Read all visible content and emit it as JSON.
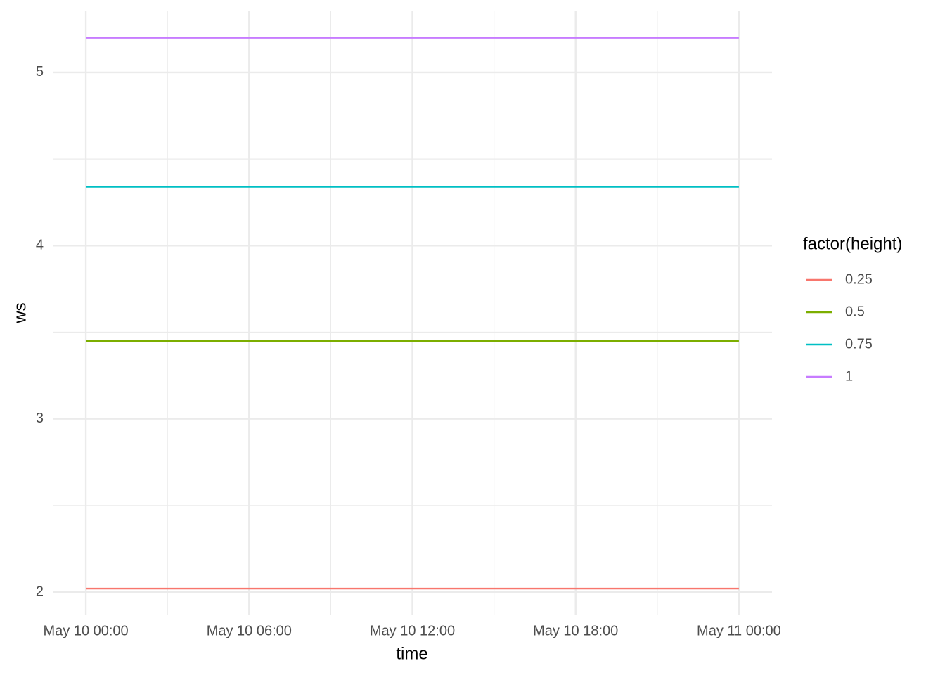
{
  "chart_data": {
    "type": "line",
    "x_label": "time",
    "y_label": "ws",
    "x": [
      "May 10 00:00",
      "May 11 00:00"
    ],
    "series": [
      {
        "name": "0.25",
        "color": "#f8766d",
        "values": [
          2.02,
          2.02
        ]
      },
      {
        "name": "0.5",
        "color": "#7cae00",
        "values": [
          3.45,
          3.45
        ]
      },
      {
        "name": "0.75",
        "color": "#00bfc4",
        "values": [
          4.34,
          4.34
        ]
      },
      {
        "name": "1",
        "color": "#c77cff",
        "values": [
          5.2,
          5.2
        ]
      }
    ],
    "legend_title": "factor(height)",
    "legend": "right",
    "xlim": [
      "May 9 22:47",
      "May 11 01:13"
    ],
    "xticks": [
      "May 10 00:00",
      "May 10 06:00",
      "May 10 12:00",
      "May 10 18:00",
      "May 11 00:00"
    ],
    "ylim": [
      1.866,
      5.357
    ],
    "yticks": [
      2,
      3,
      4,
      5
    ],
    "grid": true
  }
}
